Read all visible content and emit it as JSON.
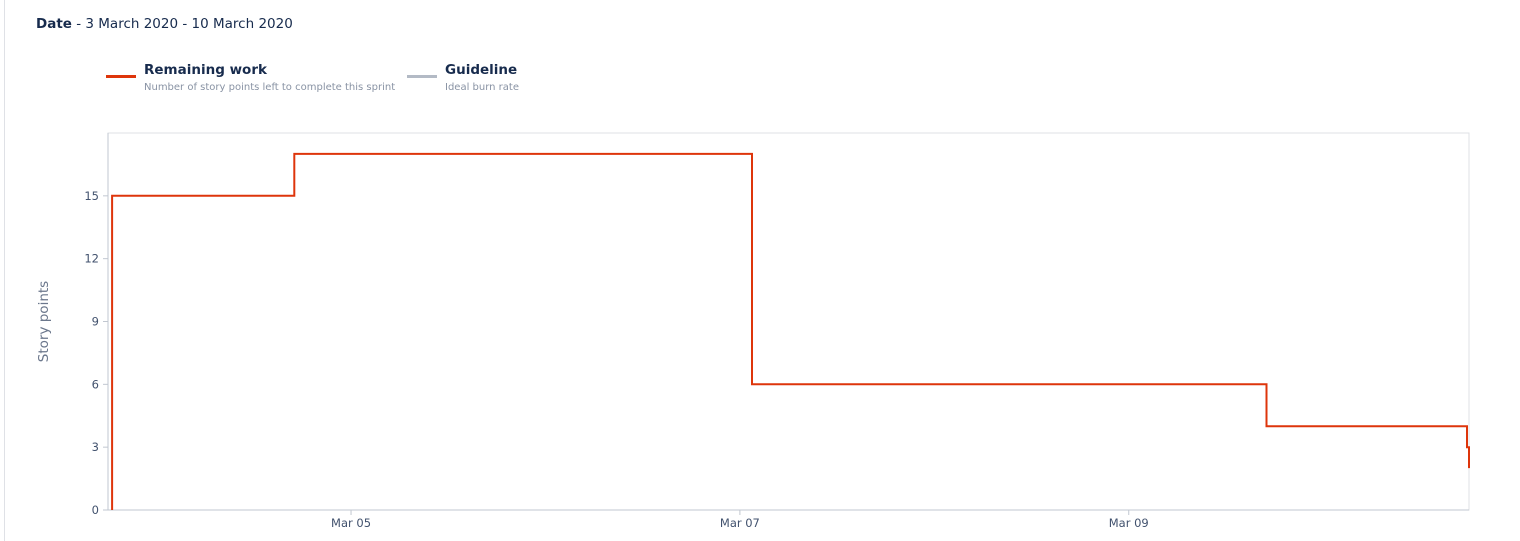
{
  "header": {
    "date_label": "Date",
    "date_range": " - 3 March 2020 - 10 March 2020"
  },
  "legend": [
    {
      "title": "Remaining work",
      "subtitle": "Number of story points left to complete this sprint",
      "color": "#de350b",
      "icon": "red-line-swatch"
    },
    {
      "title": "Guideline",
      "subtitle": "Ideal burn rate",
      "color": "#b3bac5",
      "icon": "grey-line-swatch"
    }
  ],
  "colors": {
    "remaining_work": "#de350b",
    "guideline": "#b3bac5",
    "axis": "#c1c7d0",
    "tick_text": "#42526e"
  },
  "chart_data": {
    "type": "line",
    "step": true,
    "ylabel": "Story points",
    "xlabel": "",
    "ylim": [
      0,
      18
    ],
    "yticks": [
      0,
      3,
      6,
      9,
      12,
      15
    ],
    "xlim": [
      "2020-03-03T18:00",
      "2020-03-10T18:00"
    ],
    "xticks": [
      {
        "value": "2020-03-05T00:00",
        "label": "Mar 05"
      },
      {
        "value": "2020-03-07T00:00",
        "label": "Mar 07"
      },
      {
        "value": "2020-03-09T00:00",
        "label": "Mar 09"
      }
    ],
    "grid": false,
    "legend_position": "top-left",
    "series": [
      {
        "name": "Remaining work",
        "color": "#de350b",
        "points": [
          {
            "x": "2020-03-03T18:30",
            "y": 0
          },
          {
            "x": "2020-03-03T18:30",
            "y": 15
          },
          {
            "x": "2020-03-04T17:00",
            "y": 15
          },
          {
            "x": "2020-03-04T17:00",
            "y": 17
          },
          {
            "x": "2020-03-07T01:30",
            "y": 17
          },
          {
            "x": "2020-03-07T01:30",
            "y": 6
          },
          {
            "x": "2020-03-09T17:00",
            "y": 6
          },
          {
            "x": "2020-03-09T17:00",
            "y": 4
          },
          {
            "x": "2020-03-10T17:45",
            "y": 4
          },
          {
            "x": "2020-03-10T17:45",
            "y": 3
          },
          {
            "x": "2020-03-10T18:00",
            "y": 3
          },
          {
            "x": "2020-03-10T18:00",
            "y": 2
          }
        ]
      }
    ]
  }
}
